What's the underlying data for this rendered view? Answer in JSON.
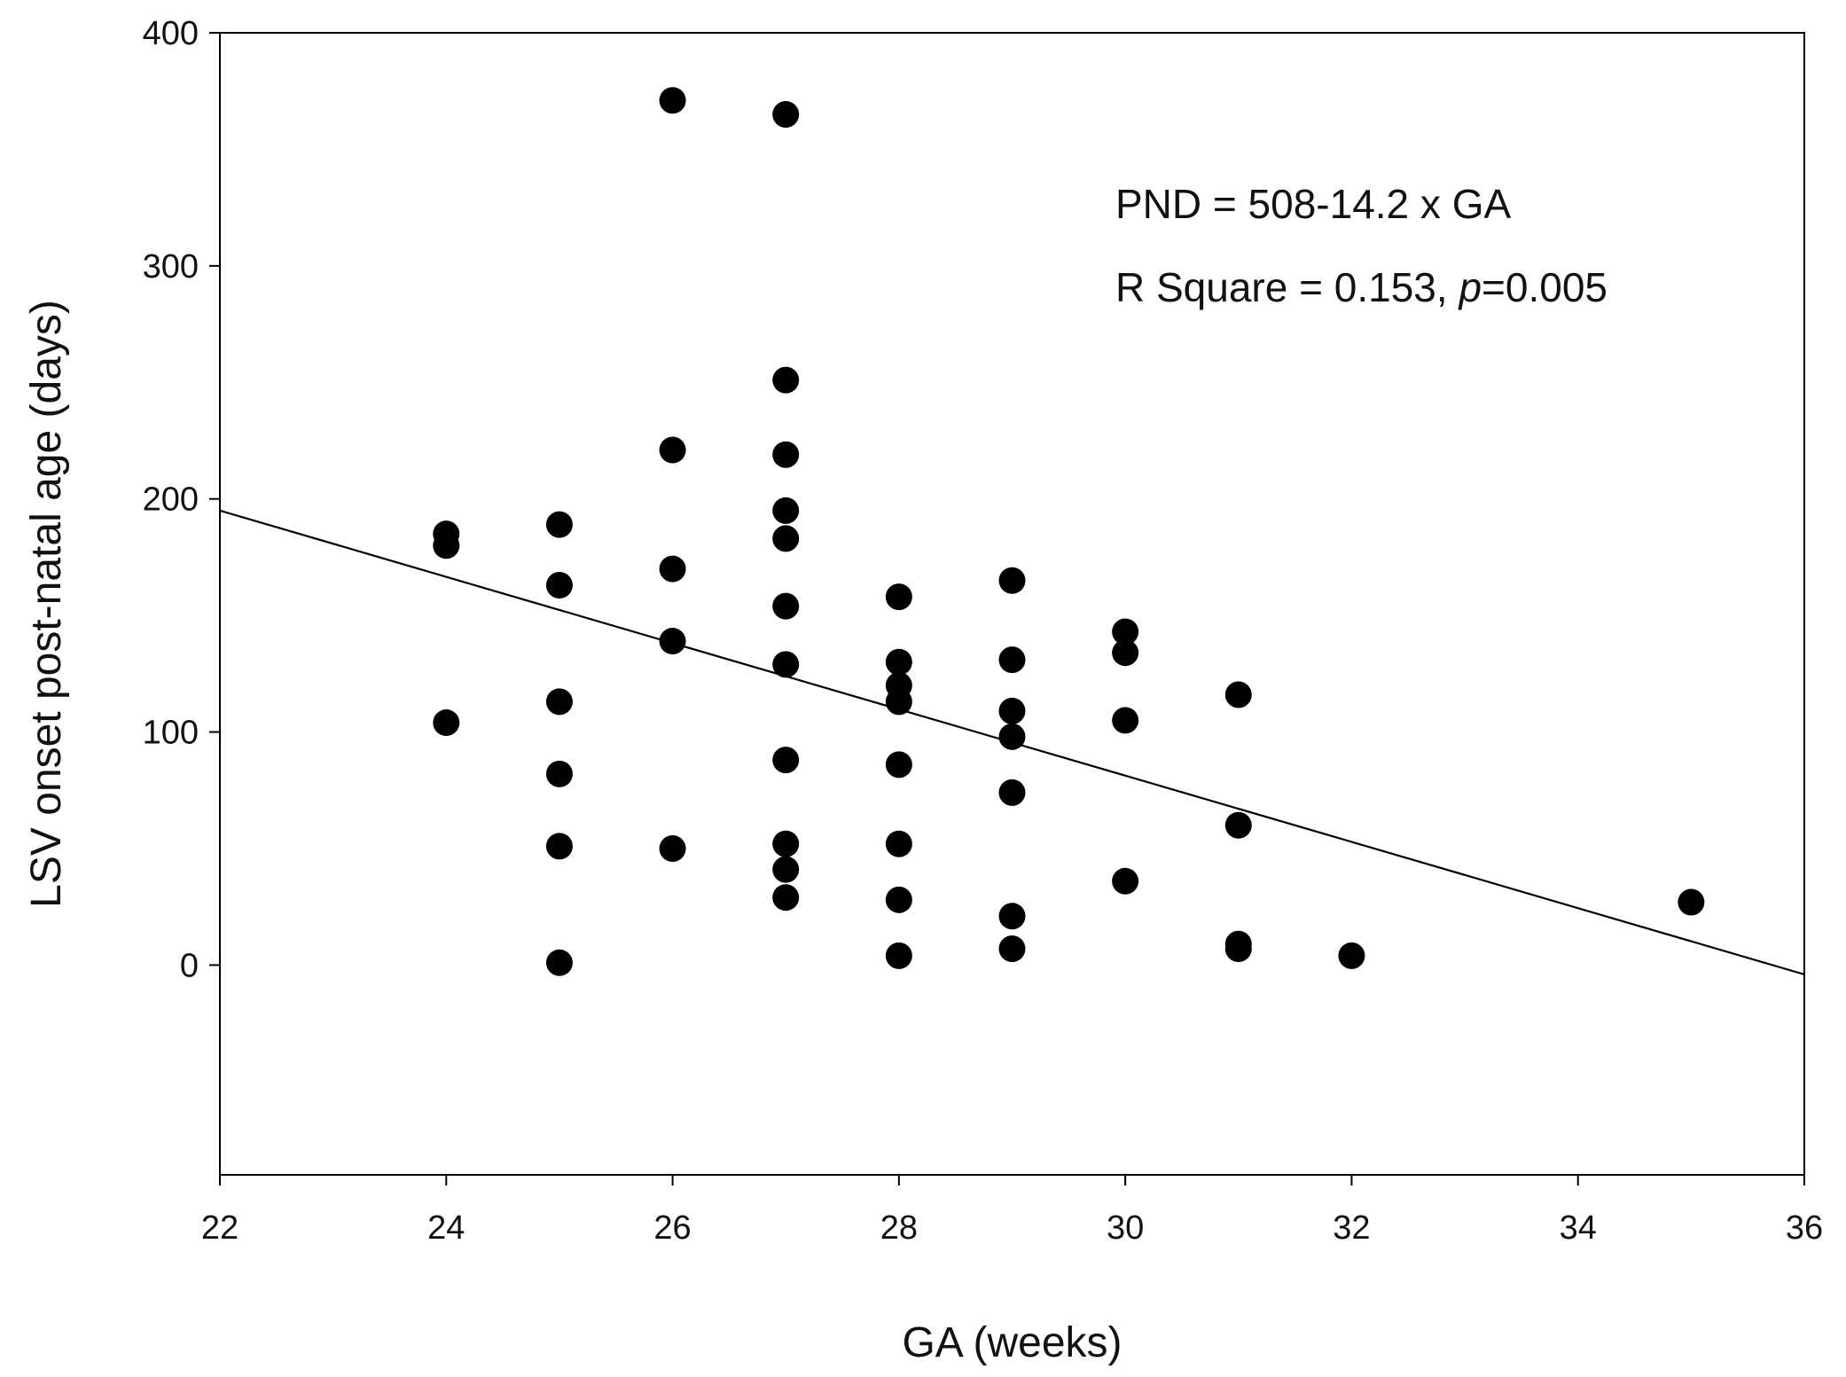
{
  "chart_data": {
    "type": "scatter",
    "title": "",
    "xlabel": "GA (weeks)",
    "ylabel": "LSV onset post-natal age (days)",
    "xlim": [
      22,
      36
    ],
    "ylim": [
      -90,
      400
    ],
    "xticks": [
      22,
      24,
      26,
      28,
      30,
      32,
      34,
      36
    ],
    "xtick_labels": [
      "22",
      "24",
      "26",
      "28",
      "30",
      "32",
      "34",
      "36"
    ],
    "yticks": [
      0,
      100,
      200,
      300,
      400
    ],
    "ytick_labels": [
      "0",
      "100",
      "200",
      "300",
      "400"
    ],
    "grid": false,
    "legend": "none",
    "series": [
      {
        "name": "LSV onset",
        "points": [
          {
            "x": 24,
            "y": 185
          },
          {
            "x": 24,
            "y": 180
          },
          {
            "x": 24,
            "y": 104
          },
          {
            "x": 25,
            "y": 189
          },
          {
            "x": 25,
            "y": 163
          },
          {
            "x": 25,
            "y": 113
          },
          {
            "x": 25,
            "y": 82
          },
          {
            "x": 25,
            "y": 51
          },
          {
            "x": 25,
            "y": 1
          },
          {
            "x": 26,
            "y": 371
          },
          {
            "x": 26,
            "y": 221
          },
          {
            "x": 26,
            "y": 170
          },
          {
            "x": 26,
            "y": 139
          },
          {
            "x": 26,
            "y": 50
          },
          {
            "x": 27,
            "y": 365
          },
          {
            "x": 27,
            "y": 251
          },
          {
            "x": 27,
            "y": 219
          },
          {
            "x": 27,
            "y": 195
          },
          {
            "x": 27,
            "y": 183
          },
          {
            "x": 27,
            "y": 154
          },
          {
            "x": 27,
            "y": 129
          },
          {
            "x": 27,
            "y": 88
          },
          {
            "x": 27,
            "y": 52
          },
          {
            "x": 27,
            "y": 41
          },
          {
            "x": 27,
            "y": 29
          },
          {
            "x": 28,
            "y": 158
          },
          {
            "x": 28,
            "y": 130
          },
          {
            "x": 28,
            "y": 120
          },
          {
            "x": 28,
            "y": 113
          },
          {
            "x": 28,
            "y": 86
          },
          {
            "x": 28,
            "y": 52
          },
          {
            "x": 28,
            "y": 28
          },
          {
            "x": 28,
            "y": 4
          },
          {
            "x": 29,
            "y": 165
          },
          {
            "x": 29,
            "y": 131
          },
          {
            "x": 29,
            "y": 109
          },
          {
            "x": 29,
            "y": 98
          },
          {
            "x": 29,
            "y": 74
          },
          {
            "x": 29,
            "y": 21
          },
          {
            "x": 29,
            "y": 7
          },
          {
            "x": 30,
            "y": 143
          },
          {
            "x": 30,
            "y": 134
          },
          {
            "x": 30,
            "y": 105
          },
          {
            "x": 30,
            "y": 36
          },
          {
            "x": 31,
            "y": 116
          },
          {
            "x": 31,
            "y": 60
          },
          {
            "x": 31,
            "y": 9
          },
          {
            "x": 31,
            "y": 7
          },
          {
            "x": 32,
            "y": 4
          },
          {
            "x": 35,
            "y": 27
          }
        ]
      }
    ],
    "regression_line": {
      "x": [
        22,
        36
      ],
      "y": [
        195,
        -4
      ]
    },
    "annotations": {
      "equation": "PND = 508-14.2 x GA",
      "r_square_prefix": "R Square = 0.153, ",
      "p_symbol": "p",
      "p_value": "=0.005"
    },
    "colors": {
      "points": "#000000",
      "line": "#000000",
      "axes": "#000000",
      "text": "#111111",
      "background": "#ffffff"
    }
  }
}
